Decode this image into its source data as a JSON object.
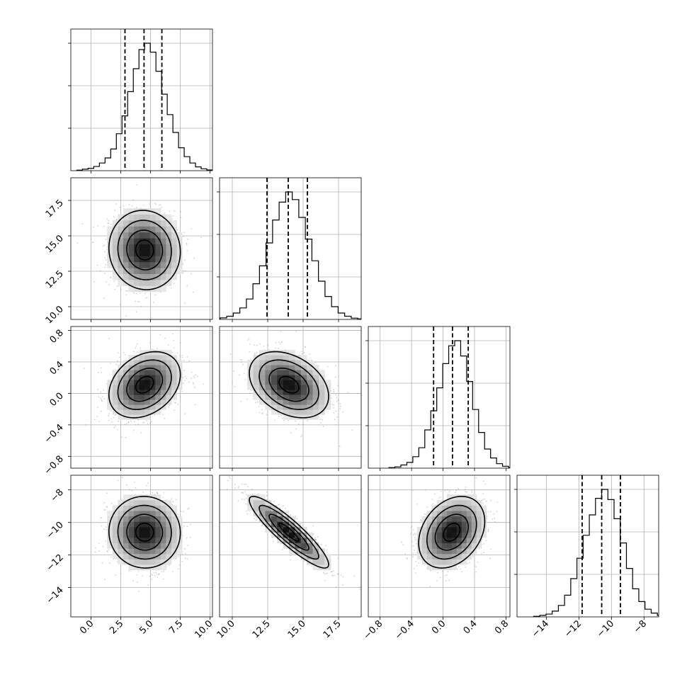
{
  "chart_data": {
    "type": "corner",
    "title": "",
    "parameters": [
      {
        "range": [
          -1.7,
          10.2
        ],
        "ticks": [
          0.0,
          2.5,
          5.0,
          7.5,
          10.0
        ],
        "tick_labels": [
          "0.0",
          "2.5",
          "5.0",
          "7.5",
          "10.0"
        ],
        "mean": 4.5,
        "sd": 1.5,
        "quantiles": [
          2.85,
          4.45,
          5.95
        ]
      },
      {
        "range": [
          9.1,
          19.1
        ],
        "ticks": [
          10.0,
          12.5,
          15.0,
          17.5
        ],
        "tick_labels": [
          "10.0",
          "12.5",
          "15.0",
          "17.5"
        ],
        "mean": 14.0,
        "sd": 1.4,
        "quantiles": [
          12.45,
          13.95,
          15.3
        ]
      },
      {
        "range": [
          -0.95,
          0.85
        ],
        "ticks": [
          -0.8,
          -0.4,
          0.0,
          0.4,
          0.8
        ],
        "tick_labels": [
          "−0.8",
          "−0.4",
          "0.0",
          "0.4",
          "0.8"
        ],
        "mean": 0.11,
        "sd": 0.21,
        "quantiles": [
          -0.12,
          0.12,
          0.32
        ]
      },
      {
        "range": [
          -15.8,
          -7.1
        ],
        "ticks": [
          -14,
          -12,
          -10,
          -8
        ],
        "tick_labels": [
          "−14",
          "−12",
          "−10",
          "−8"
        ],
        "mean": -10.6,
        "sd": 1.1,
        "quantiles": [
          -11.8,
          -10.6,
          -9.45
        ]
      }
    ],
    "histogram_peaks": [
      [
        0.004,
        0.012,
        0.018,
        0.033,
        0.06,
        0.1,
        0.17,
        0.29,
        0.43,
        0.62,
        0.8,
        0.95,
        1.0,
        0.93,
        0.78,
        0.6,
        0.44,
        0.3,
        0.18,
        0.11,
        0.06,
        0.03,
        0.015,
        0.006
      ],
      [
        0.005,
        0.012,
        0.025,
        0.05,
        0.09,
        0.16,
        0.28,
        0.42,
        0.6,
        0.78,
        0.92,
        1.0,
        0.94,
        0.8,
        0.63,
        0.46,
        0.3,
        0.18,
        0.1,
        0.05,
        0.025,
        0.01,
        0.004
      ],
      [
        0.004,
        0.01,
        0.025,
        0.045,
        0.09,
        0.16,
        0.3,
        0.45,
        0.63,
        0.82,
        0.96,
        1.0,
        0.88,
        0.68,
        0.46,
        0.28,
        0.15,
        0.08,
        0.035,
        0.015,
        0.005
      ],
      [
        0.004,
        0.012,
        0.022,
        0.045,
        0.09,
        0.17,
        0.3,
        0.46,
        0.64,
        0.8,
        0.93,
        1.0,
        0.92,
        0.77,
        0.58,
        0.38,
        0.22,
        0.12,
        0.06,
        0.03,
        0.012,
        0.005
      ]
    ],
    "correlations": {
      "1-0": -0.05,
      "2-0": 0.3,
      "2-1": -0.35,
      "3-0": -0.02,
      "3-1": -0.9,
      "3-2": 0.3
    },
    "contour_levels_sigma": [
      0.5,
      1.0,
      1.5,
      2.0
    ],
    "colors": {
      "line": "#000000",
      "grid": "#b0b0b0",
      "scatter": "#a8a8a8"
    },
    "grid": true,
    "legend": "none"
  }
}
